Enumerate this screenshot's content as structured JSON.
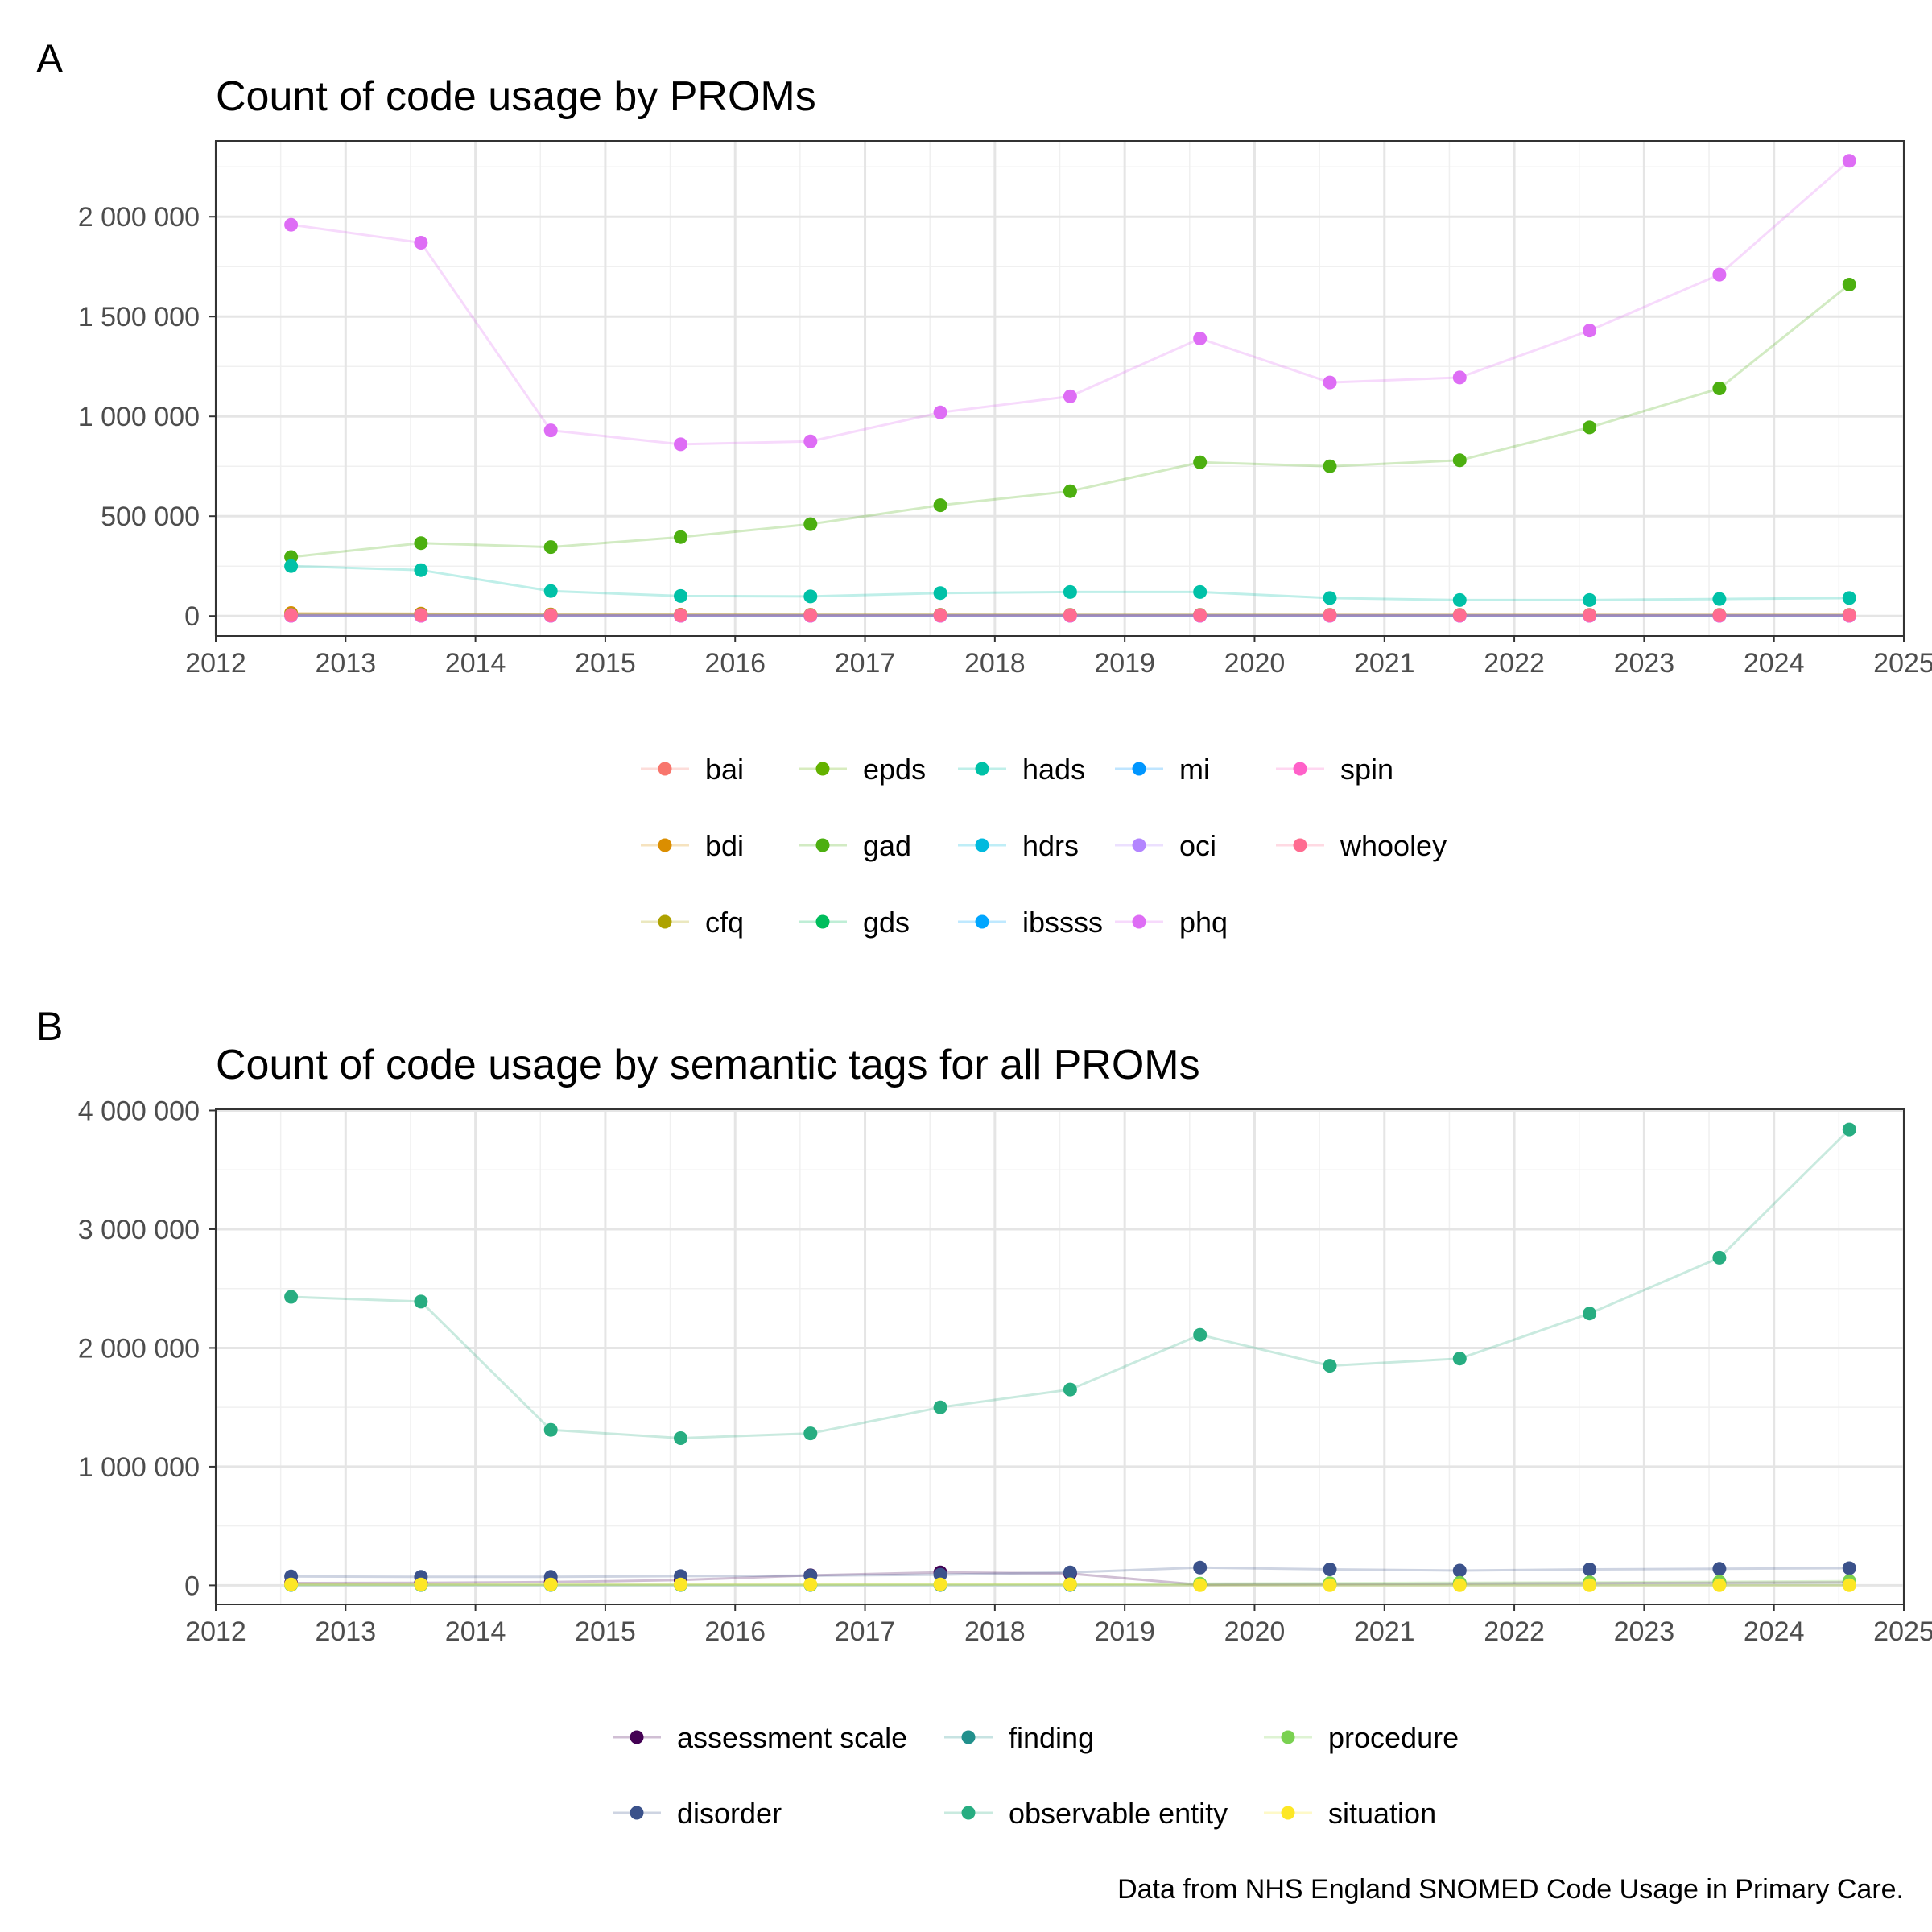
{
  "caption": "Data from NHS England SNOMED Code Usage in Primary Care.",
  "chart_data": [
    {
      "panel": "A",
      "type": "line",
      "title": "Count of code usage by PROMs",
      "xlabel": "",
      "ylabel": "",
      "xlim": [
        2012,
        2025
      ],
      "ylim": [
        -100000,
        2380000
      ],
      "x_ticks": [
        "2012",
        "2013",
        "2014",
        "2015",
        "2016",
        "2017",
        "2018",
        "2019",
        "2020",
        "2021",
        "2022",
        "2023",
        "2024",
        "2025"
      ],
      "y_ticks": [
        0,
        500000,
        1000000,
        1500000,
        2000000
      ],
      "y_tick_labels": [
        "0",
        "500 000",
        "1 000 000",
        "1 500 000",
        "2 000 000"
      ],
      "grid": true,
      "legend_position": "bottom",
      "x": [
        2012.58,
        2013.58,
        2014.58,
        2015.58,
        2016.58,
        2017.58,
        2018.58,
        2019.58,
        2020.58,
        2021.58,
        2022.58,
        2023.58,
        2024.58
      ],
      "series": [
        {
          "name": "bai",
          "color": "#F8766D",
          "values": [
            8000,
            8000,
            5000,
            5000,
            5000,
            5000,
            5000,
            5000,
            5000,
            5000,
            5000,
            5000,
            5000
          ]
        },
        {
          "name": "bdi",
          "color": "#DB8E00",
          "values": [
            15000,
            12000,
            8000,
            7000,
            6000,
            6000,
            5000,
            5000,
            4000,
            4000,
            4000,
            4000,
            4000
          ]
        },
        {
          "name": "cfq",
          "color": "#AEA200",
          "values": [
            3000,
            3000,
            2000,
            2000,
            2000,
            2000,
            2000,
            2000,
            2000,
            2000,
            2000,
            2000,
            2000
          ]
        },
        {
          "name": "epds",
          "color": "#64B200",
          "values": [
            8000,
            8000,
            6000,
            6000,
            6000,
            6000,
            6000,
            6000,
            6000,
            6000,
            6000,
            6000,
            6000
          ]
        },
        {
          "name": "gad",
          "color": "#4CAF10",
          "values": [
            295000,
            365000,
            345000,
            395000,
            460000,
            555000,
            625000,
            770000,
            750000,
            780000,
            945000,
            1140000,
            1660000
          ]
        },
        {
          "name": "gds",
          "color": "#00BD5C",
          "values": [
            5000,
            5000,
            4000,
            4000,
            4000,
            4000,
            4000,
            4000,
            3000,
            3000,
            3000,
            3000,
            3000
          ]
        },
        {
          "name": "hads",
          "color": "#00C1A7",
          "values": [
            250000,
            230000,
            125000,
            100000,
            98000,
            115000,
            120000,
            120000,
            90000,
            80000,
            80000,
            85000,
            90000
          ]
        },
        {
          "name": "hdrs",
          "color": "#00BADE",
          "values": [
            2000,
            2000,
            1500,
            1500,
            1500,
            1500,
            1500,
            1500,
            1500,
            1500,
            1500,
            1500,
            1500
          ]
        },
        {
          "name": "ibssss",
          "color": "#00A6FF",
          "values": [
            1000,
            1000,
            1000,
            1000,
            1000,
            1000,
            1000,
            1000,
            1000,
            1000,
            1000,
            1000,
            1000
          ]
        },
        {
          "name": "mi",
          "color": "#0096FF",
          "values": [
            2000,
            2000,
            2000,
            2000,
            2000,
            2000,
            2000,
            2000,
            2000,
            2000,
            2000,
            2000,
            2000
          ]
        },
        {
          "name": "oci",
          "color": "#B385FF",
          "values": [
            3000,
            3000,
            3000,
            3000,
            3000,
            3000,
            3000,
            3000,
            3000,
            3000,
            3000,
            3000,
            3000
          ]
        },
        {
          "name": "phq",
          "color": "#DE6DF5",
          "values": [
            1960000,
            1870000,
            930000,
            860000,
            875000,
            1020000,
            1100000,
            1390000,
            1170000,
            1195000,
            1430000,
            1710000,
            2280000
          ]
        },
        {
          "name": "spin",
          "color": "#FF61C9",
          "values": [
            1000,
            1000,
            1000,
            1000,
            1000,
            1000,
            1000,
            1000,
            1000,
            1000,
            1000,
            1000,
            1000
          ]
        },
        {
          "name": "whooley",
          "color": "#FF6C91",
          "values": [
            6000,
            6000,
            5000,
            5000,
            5000,
            5000,
            5000,
            5000,
            5000,
            5000,
            5000,
            5000,
            5000
          ]
        }
      ],
      "legend": {
        "columns": [
          [
            "bai",
            "bdi",
            "cfq"
          ],
          [
            "epds",
            "gad",
            "gds"
          ],
          [
            "hads",
            "hdrs",
            "ibssss"
          ],
          [
            "mi",
            "oci",
            "phq"
          ],
          [
            "spin",
            "whooley"
          ]
        ]
      }
    },
    {
      "panel": "B",
      "type": "line",
      "title": "Count of code usage by semantic tags for all PROMs",
      "xlabel": "",
      "ylabel": "",
      "xlim": [
        2012,
        2025
      ],
      "ylim": [
        -160000,
        4010000
      ],
      "x_ticks": [
        "2012",
        "2013",
        "2014",
        "2015",
        "2016",
        "2017",
        "2018",
        "2019",
        "2020",
        "2021",
        "2022",
        "2023",
        "2024",
        "2025"
      ],
      "y_ticks": [
        0,
        1000000,
        2000000,
        3000000,
        4000000
      ],
      "y_tick_labels": [
        "0",
        "1 000 000",
        "2 000 000",
        "3 000 000",
        "4 000 000"
      ],
      "grid": true,
      "legend_position": "bottom",
      "x": [
        2012.58,
        2013.58,
        2014.58,
        2015.58,
        2016.58,
        2017.58,
        2018.58,
        2019.58,
        2020.58,
        2021.58,
        2022.58,
        2023.58,
        2024.58
      ],
      "series": [
        {
          "name": "assessment scale",
          "color": "#440154",
          "values": [
            20000,
            22000,
            28000,
            45000,
            85000,
            110000,
            100000,
            5000,
            10000,
            15000,
            18000,
            22000,
            25000
          ]
        },
        {
          "name": "disorder",
          "color": "#3B528B",
          "values": [
            75000,
            72000,
            72000,
            78000,
            82000,
            90000,
            110000,
            150000,
            135000,
            125000,
            135000,
            140000,
            145000
          ]
        },
        {
          "name": "finding",
          "color": "#21908C",
          "values": [
            3000,
            3000,
            3000,
            3000,
            3000,
            3000,
            3000,
            3000,
            3000,
            3000,
            3000,
            3000,
            3000
          ]
        },
        {
          "name": "observable entity",
          "color": "#27AD81",
          "values": [
            2430000,
            2390000,
            1310000,
            1240000,
            1280000,
            1500000,
            1650000,
            2110000,
            1850000,
            1910000,
            2290000,
            2760000,
            3840000
          ]
        },
        {
          "name": "procedure",
          "color": "#7AD151",
          "values": [
            5000,
            5000,
            5000,
            5000,
            5000,
            8000,
            10000,
            15000,
            18000,
            22000,
            25000,
            30000,
            35000
          ]
        },
        {
          "name": "situation",
          "color": "#FDE725",
          "values": [
            8000,
            8000,
            8000,
            8000,
            8000,
            8000,
            8000,
            1000,
            1000,
            1000,
            1000,
            1000,
            1000
          ]
        }
      ],
      "legend": {
        "columns": [
          [
            "assessment scale",
            "disorder"
          ],
          [
            "finding",
            "observable entity"
          ],
          [
            "procedure",
            "situation"
          ]
        ]
      }
    }
  ],
  "panels": [
    {
      "letter": "A",
      "title": "Count of code usage by PROMs"
    },
    {
      "letter": "B",
      "title": "Count of code usage by semantic tags for all PROMs"
    }
  ]
}
